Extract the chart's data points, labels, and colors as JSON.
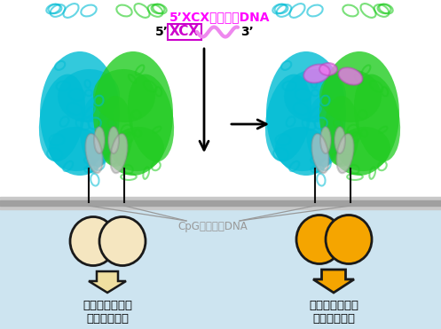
{
  "title_top": "5’XCXモチーフDNA",
  "label_cpg": "CpGモチーフDNA",
  "label_left_line1": "２量体化（弱）",
  "label_left_line2": "活性化（弱）",
  "label_right_line1": "２量体化（強）",
  "label_right_line2": "活性化（強）",
  "bg_top_color": "#ffffff",
  "bg_bottom_color": "#cde4f0",
  "membrane_color_top": "#c8c8c8",
  "membrane_color_bot": "#a0a0a0",
  "circle_left_color": "#f5e6c0",
  "circle_right_color": "#f5a500",
  "circle_edge": "#1a1a1a",
  "arrow_color_left": "#f0dfa0",
  "arrow_color_right": "#f5a500",
  "arrow_edge": "#1a1a1a",
  "title_color": "#ff00ff",
  "dna_wave_color": "#ee88ee",
  "xcx_color": "#cc00cc",
  "cpg_label_color": "#999999",
  "protein_cyan": "#00bcd4",
  "protein_green": "#22cc22",
  "protein_magenta": "#ee77ee",
  "protein_gray": "#c0c0c0",
  "line_color": "#111111"
}
